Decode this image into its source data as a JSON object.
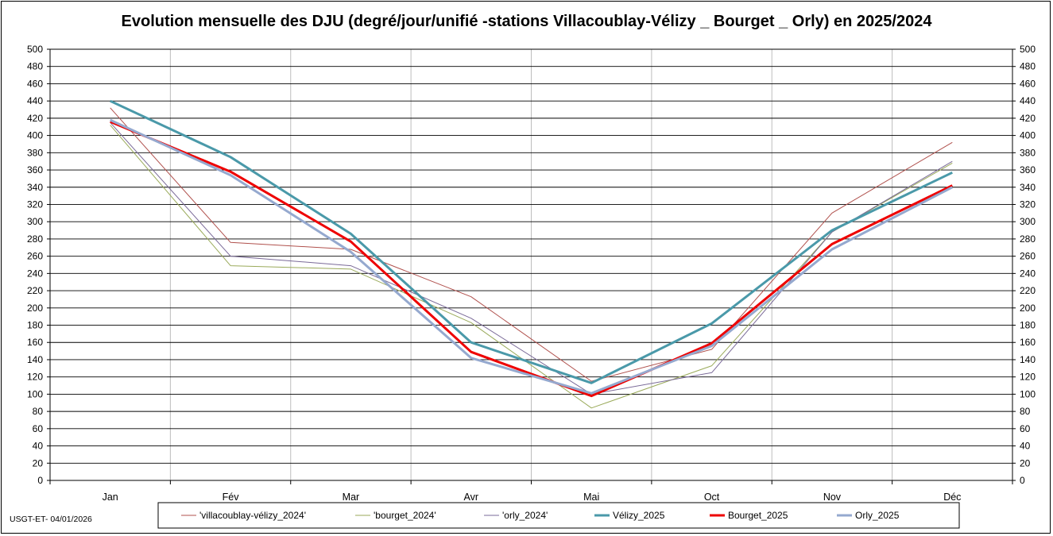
{
  "chart_data": {
    "type": "line",
    "title": "Evolution mensuelle des DJU (degré/jour/unifié  -stations Villacoublay-Vélizy _ Bourget _ Orly) en 2025/2024",
    "categories": [
      "Jan",
      "Fév",
      "Mar",
      "Avr",
      "Mai",
      "Oct",
      "Nov",
      "Déc"
    ],
    "ylim": [
      0,
      500
    ],
    "ytick_step": 20,
    "grid": true,
    "secondary_y_axis": true,
    "legend_position": "bottom",
    "series": [
      {
        "name": "'villacoublay-vélizy_2024'",
        "values": [
          432,
          276,
          268,
          213,
          115,
          152,
          310,
          392
        ],
        "color": "#b0504c",
        "width": 1
      },
      {
        "name": "'bourget_2024'",
        "values": [
          412,
          249,
          245,
          183,
          84,
          133,
          288,
          368
        ],
        "color": "#9aaa5a",
        "width": 1
      },
      {
        "name": "'orly_2024'",
        "values": [
          415,
          260,
          249,
          188,
          100,
          125,
          288,
          370
        ],
        "color": "#7a6a98",
        "width": 1
      },
      {
        "name": "Vélizy_2025",
        "values": [
          440,
          375,
          286,
          160,
          113,
          182,
          290,
          357
        ],
        "color": "#4a99a9",
        "width": 3
      },
      {
        "name": "Bourget_2025",
        "values": [
          416,
          358,
          277,
          149,
          98,
          159,
          274,
          342
        ],
        "color": "#ee0000",
        "width": 3
      },
      {
        "name": "Orly_2025",
        "values": [
          418,
          354,
          265,
          142,
          101,
          156,
          268,
          340
        ],
        "color": "#95a9cf",
        "width": 3
      }
    ]
  },
  "footer": {
    "note": "USGT-ET-  04/01/2026"
  }
}
